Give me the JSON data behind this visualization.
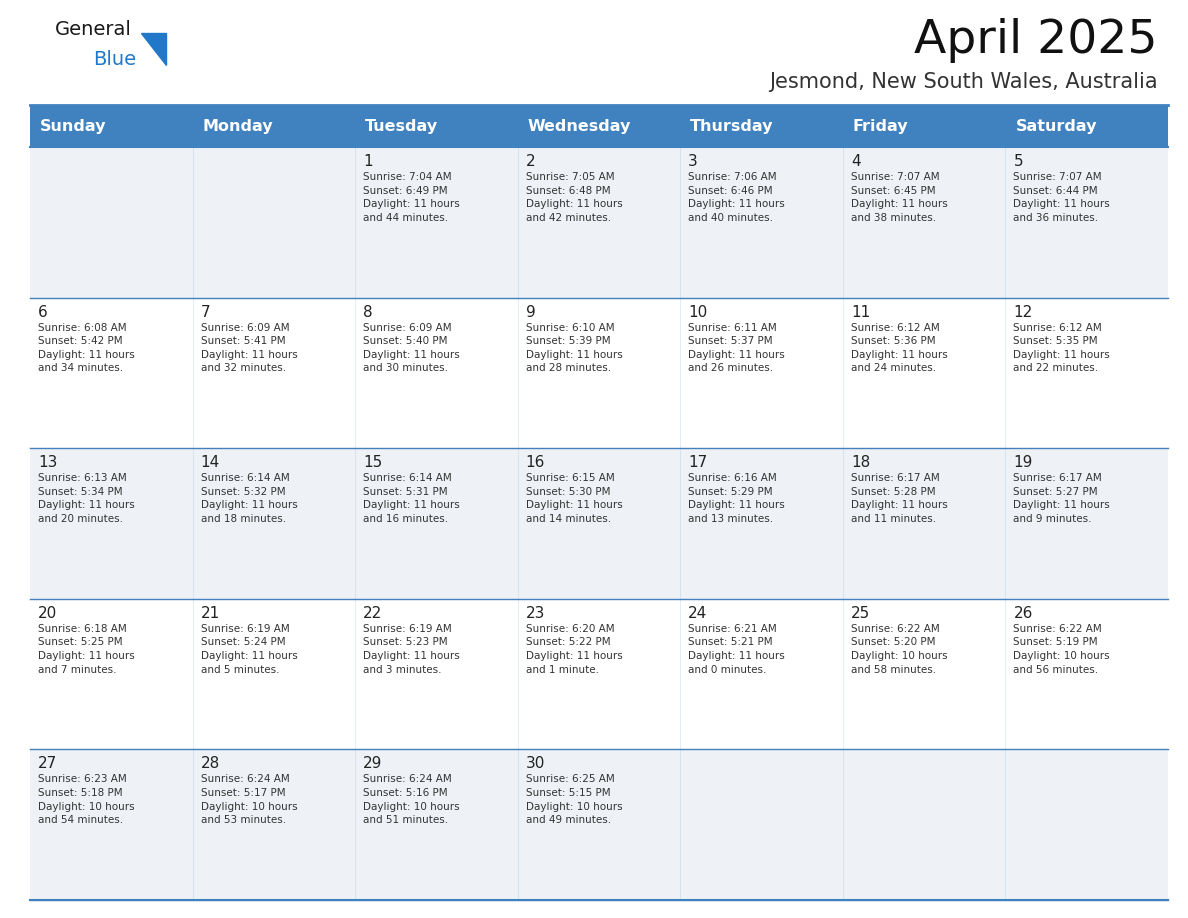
{
  "title": "April 2025",
  "subtitle": "Jesmond, New South Wales, Australia",
  "header_color": "#4081bf",
  "header_text_color": "#ffffff",
  "cell_bg_even": "#eef2f7",
  "cell_bg_odd": "#ffffff",
  "border_color": "#4081bf",
  "text_color": "#333333",
  "day_num_color": "#222222",
  "days_of_week": [
    "Sunday",
    "Monday",
    "Tuesday",
    "Wednesday",
    "Thursday",
    "Friday",
    "Saturday"
  ],
  "weeks": [
    [
      {
        "day": "",
        "info": ""
      },
      {
        "day": "",
        "info": ""
      },
      {
        "day": "1",
        "info": "Sunrise: 7:04 AM\nSunset: 6:49 PM\nDaylight: 11 hours\nand 44 minutes."
      },
      {
        "day": "2",
        "info": "Sunrise: 7:05 AM\nSunset: 6:48 PM\nDaylight: 11 hours\nand 42 minutes."
      },
      {
        "day": "3",
        "info": "Sunrise: 7:06 AM\nSunset: 6:46 PM\nDaylight: 11 hours\nand 40 minutes."
      },
      {
        "day": "4",
        "info": "Sunrise: 7:07 AM\nSunset: 6:45 PM\nDaylight: 11 hours\nand 38 minutes."
      },
      {
        "day": "5",
        "info": "Sunrise: 7:07 AM\nSunset: 6:44 PM\nDaylight: 11 hours\nand 36 minutes."
      }
    ],
    [
      {
        "day": "6",
        "info": "Sunrise: 6:08 AM\nSunset: 5:42 PM\nDaylight: 11 hours\nand 34 minutes."
      },
      {
        "day": "7",
        "info": "Sunrise: 6:09 AM\nSunset: 5:41 PM\nDaylight: 11 hours\nand 32 minutes."
      },
      {
        "day": "8",
        "info": "Sunrise: 6:09 AM\nSunset: 5:40 PM\nDaylight: 11 hours\nand 30 minutes."
      },
      {
        "day": "9",
        "info": "Sunrise: 6:10 AM\nSunset: 5:39 PM\nDaylight: 11 hours\nand 28 minutes."
      },
      {
        "day": "10",
        "info": "Sunrise: 6:11 AM\nSunset: 5:37 PM\nDaylight: 11 hours\nand 26 minutes."
      },
      {
        "day": "11",
        "info": "Sunrise: 6:12 AM\nSunset: 5:36 PM\nDaylight: 11 hours\nand 24 minutes."
      },
      {
        "day": "12",
        "info": "Sunrise: 6:12 AM\nSunset: 5:35 PM\nDaylight: 11 hours\nand 22 minutes."
      }
    ],
    [
      {
        "day": "13",
        "info": "Sunrise: 6:13 AM\nSunset: 5:34 PM\nDaylight: 11 hours\nand 20 minutes."
      },
      {
        "day": "14",
        "info": "Sunrise: 6:14 AM\nSunset: 5:32 PM\nDaylight: 11 hours\nand 18 minutes."
      },
      {
        "day": "15",
        "info": "Sunrise: 6:14 AM\nSunset: 5:31 PM\nDaylight: 11 hours\nand 16 minutes."
      },
      {
        "day": "16",
        "info": "Sunrise: 6:15 AM\nSunset: 5:30 PM\nDaylight: 11 hours\nand 14 minutes."
      },
      {
        "day": "17",
        "info": "Sunrise: 6:16 AM\nSunset: 5:29 PM\nDaylight: 11 hours\nand 13 minutes."
      },
      {
        "day": "18",
        "info": "Sunrise: 6:17 AM\nSunset: 5:28 PM\nDaylight: 11 hours\nand 11 minutes."
      },
      {
        "day": "19",
        "info": "Sunrise: 6:17 AM\nSunset: 5:27 PM\nDaylight: 11 hours\nand 9 minutes."
      }
    ],
    [
      {
        "day": "20",
        "info": "Sunrise: 6:18 AM\nSunset: 5:25 PM\nDaylight: 11 hours\nand 7 minutes."
      },
      {
        "day": "21",
        "info": "Sunrise: 6:19 AM\nSunset: 5:24 PM\nDaylight: 11 hours\nand 5 minutes."
      },
      {
        "day": "22",
        "info": "Sunrise: 6:19 AM\nSunset: 5:23 PM\nDaylight: 11 hours\nand 3 minutes."
      },
      {
        "day": "23",
        "info": "Sunrise: 6:20 AM\nSunset: 5:22 PM\nDaylight: 11 hours\nand 1 minute."
      },
      {
        "day": "24",
        "info": "Sunrise: 6:21 AM\nSunset: 5:21 PM\nDaylight: 11 hours\nand 0 minutes."
      },
      {
        "day": "25",
        "info": "Sunrise: 6:22 AM\nSunset: 5:20 PM\nDaylight: 10 hours\nand 58 minutes."
      },
      {
        "day": "26",
        "info": "Sunrise: 6:22 AM\nSunset: 5:19 PM\nDaylight: 10 hours\nand 56 minutes."
      }
    ],
    [
      {
        "day": "27",
        "info": "Sunrise: 6:23 AM\nSunset: 5:18 PM\nDaylight: 10 hours\nand 54 minutes."
      },
      {
        "day": "28",
        "info": "Sunrise: 6:24 AM\nSunset: 5:17 PM\nDaylight: 10 hours\nand 53 minutes."
      },
      {
        "day": "29",
        "info": "Sunrise: 6:24 AM\nSunset: 5:16 PM\nDaylight: 10 hours\nand 51 minutes."
      },
      {
        "day": "30",
        "info": "Sunrise: 6:25 AM\nSunset: 5:15 PM\nDaylight: 10 hours\nand 49 minutes."
      },
      {
        "day": "",
        "info": ""
      },
      {
        "day": "",
        "info": ""
      },
      {
        "day": "",
        "info": ""
      }
    ]
  ],
  "logo_general_color": "#1a1a1a",
  "logo_blue_color": "#2278c8",
  "logo_triangle_color": "#2278c8",
  "fig_width": 11.88,
  "fig_height": 9.18,
  "dpi": 100
}
